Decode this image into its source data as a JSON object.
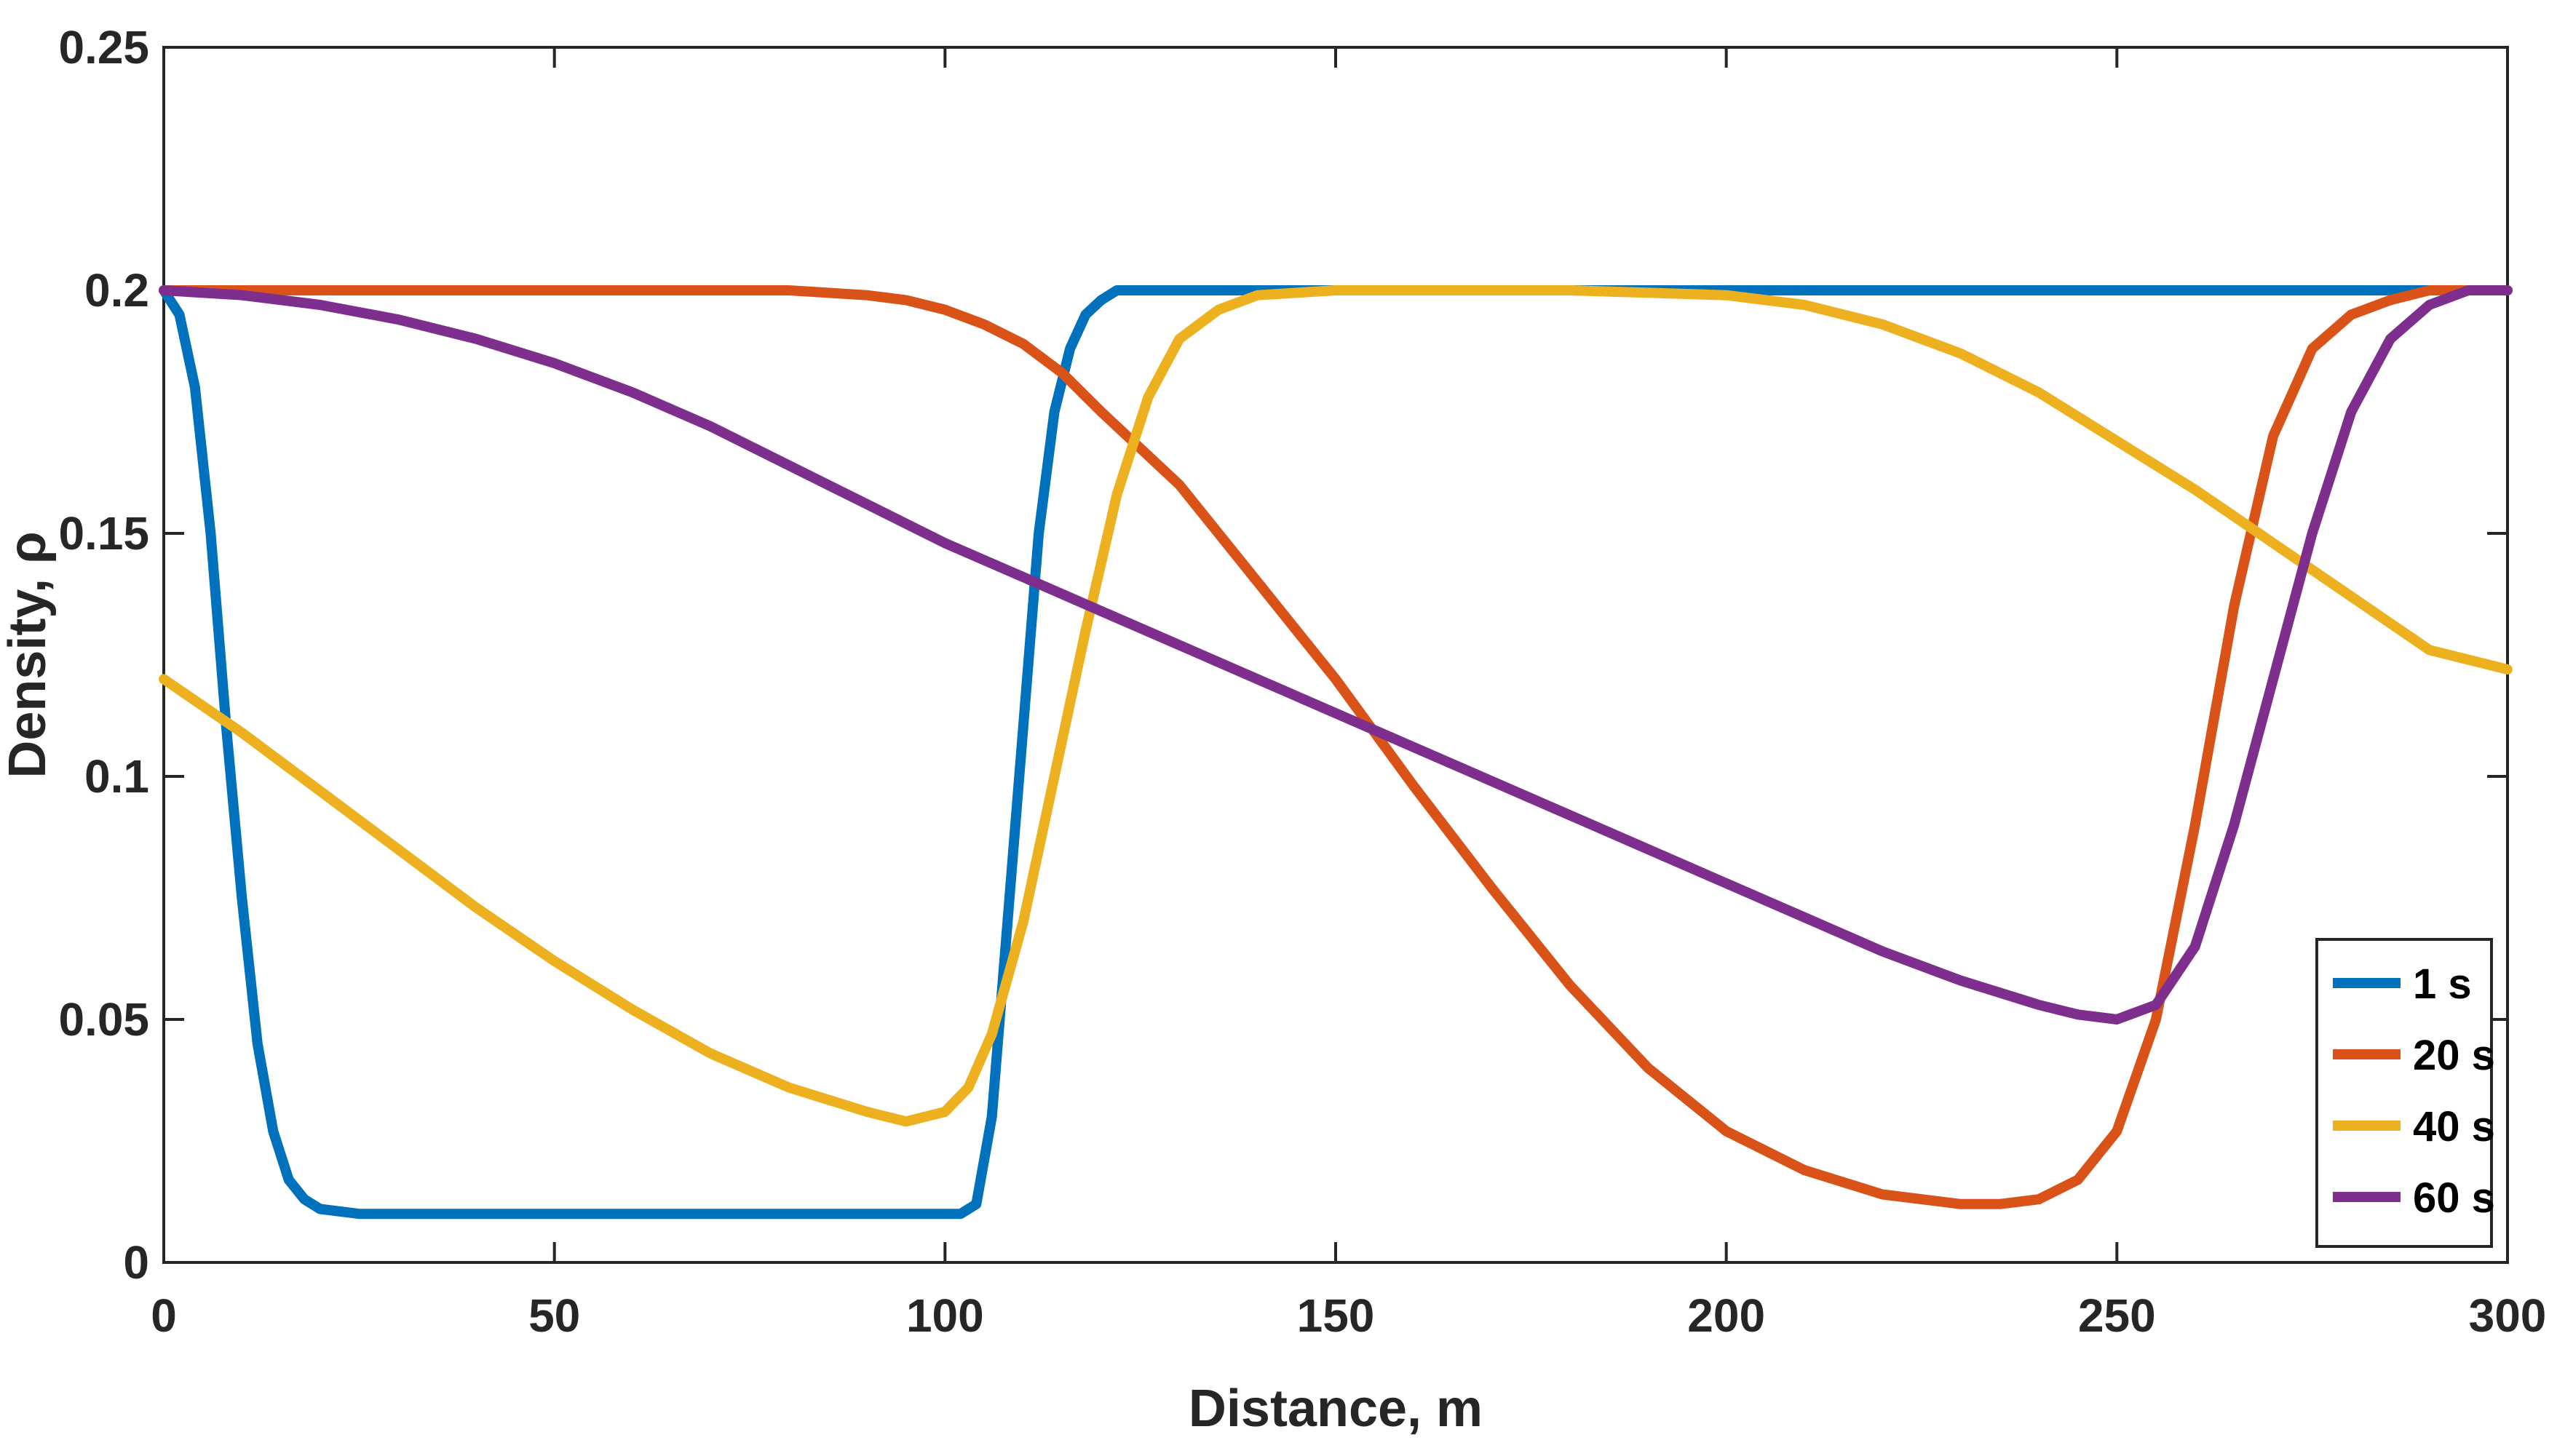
{
  "chart_data": {
    "type": "line",
    "title": "",
    "xlabel": "Distance, m",
    "ylabel": "Density, ρ",
    "xlim": [
      0,
      300
    ],
    "ylim": [
      0,
      0.25
    ],
    "xticks": [
      0,
      50,
      100,
      150,
      200,
      250,
      300
    ],
    "xtick_labels": [
      "0",
      "50",
      "100",
      "150",
      "200",
      "250",
      "300"
    ],
    "yticks": [
      0,
      0.05,
      0.1,
      0.15,
      0.2,
      0.25
    ],
    "ytick_labels": [
      "0",
      "0.05",
      "0.1",
      "0.15",
      "0.2",
      "0.25"
    ],
    "grid": false,
    "box": true,
    "legend_position": "bottom-right",
    "series": [
      {
        "name": "1 s",
        "color": "#0072BD",
        "x": [
          0,
          2,
          4,
          6,
          8,
          10,
          12,
          14,
          16,
          18,
          20,
          25,
          30,
          50,
          80,
          100,
          102,
          104,
          106,
          108,
          110,
          112,
          114,
          116,
          118,
          120,
          122,
          125,
          130,
          150,
          200,
          250,
          300
        ],
        "y": [
          0.2,
          0.195,
          0.18,
          0.15,
          0.11,
          0.075,
          0.045,
          0.027,
          0.017,
          0.013,
          0.011,
          0.01,
          0.01,
          0.01,
          0.01,
          0.01,
          0.01,
          0.012,
          0.03,
          0.07,
          0.11,
          0.15,
          0.175,
          0.188,
          0.195,
          0.198,
          0.2,
          0.2,
          0.2,
          0.2,
          0.2,
          0.2,
          0.2
        ]
      },
      {
        "name": "20 s",
        "color": "#D95319",
        "x": [
          0,
          20,
          40,
          60,
          80,
          90,
          95,
          100,
          105,
          110,
          115,
          120,
          130,
          140,
          150,
          160,
          170,
          180,
          190,
          200,
          210,
          220,
          230,
          235,
          240,
          245,
          250,
          255,
          260,
          265,
          270,
          275,
          280,
          285,
          290,
          295,
          300
        ],
        "y": [
          0.2,
          0.2,
          0.2,
          0.2,
          0.2,
          0.199,
          0.198,
          0.196,
          0.193,
          0.189,
          0.183,
          0.175,
          0.16,
          0.14,
          0.12,
          0.098,
          0.077,
          0.057,
          0.04,
          0.027,
          0.019,
          0.014,
          0.012,
          0.012,
          0.013,
          0.017,
          0.027,
          0.05,
          0.09,
          0.135,
          0.17,
          0.188,
          0.195,
          0.198,
          0.2,
          0.2,
          0.2
        ]
      },
      {
        "name": "40 s",
        "color": "#EDB120",
        "x": [
          0,
          10,
          20,
          30,
          40,
          50,
          60,
          70,
          80,
          90,
          95,
          100,
          103,
          106,
          110,
          114,
          118,
          122,
          126,
          130,
          135,
          140,
          150,
          160,
          180,
          200,
          210,
          220,
          230,
          240,
          250,
          260,
          270,
          280,
          290,
          300
        ],
        "y": [
          0.12,
          0.109,
          0.097,
          0.085,
          0.073,
          0.062,
          0.052,
          0.043,
          0.036,
          0.031,
          0.029,
          0.031,
          0.036,
          0.047,
          0.07,
          0.1,
          0.13,
          0.158,
          0.178,
          0.19,
          0.196,
          0.199,
          0.2,
          0.2,
          0.2,
          0.199,
          0.197,
          0.193,
          0.187,
          0.179,
          0.169,
          0.159,
          0.148,
          0.137,
          0.126,
          0.122
        ]
      },
      {
        "name": "60 s",
        "color": "#7E2F8E",
        "x": [
          0,
          10,
          20,
          30,
          40,
          50,
          60,
          70,
          80,
          90,
          100,
          110,
          120,
          130,
          140,
          150,
          160,
          170,
          180,
          190,
          200,
          210,
          220,
          230,
          240,
          245,
          250,
          255,
          260,
          265,
          270,
          275,
          280,
          285,
          290,
          295,
          300
        ],
        "y": [
          0.2,
          0.199,
          0.197,
          0.194,
          0.19,
          0.185,
          0.179,
          0.172,
          0.164,
          0.156,
          0.148,
          0.141,
          0.134,
          0.127,
          0.12,
          0.113,
          0.106,
          0.099,
          0.092,
          0.085,
          0.078,
          0.071,
          0.064,
          0.058,
          0.053,
          0.051,
          0.05,
          0.053,
          0.065,
          0.09,
          0.12,
          0.15,
          0.175,
          0.19,
          0.197,
          0.2,
          0.2
        ]
      }
    ]
  }
}
